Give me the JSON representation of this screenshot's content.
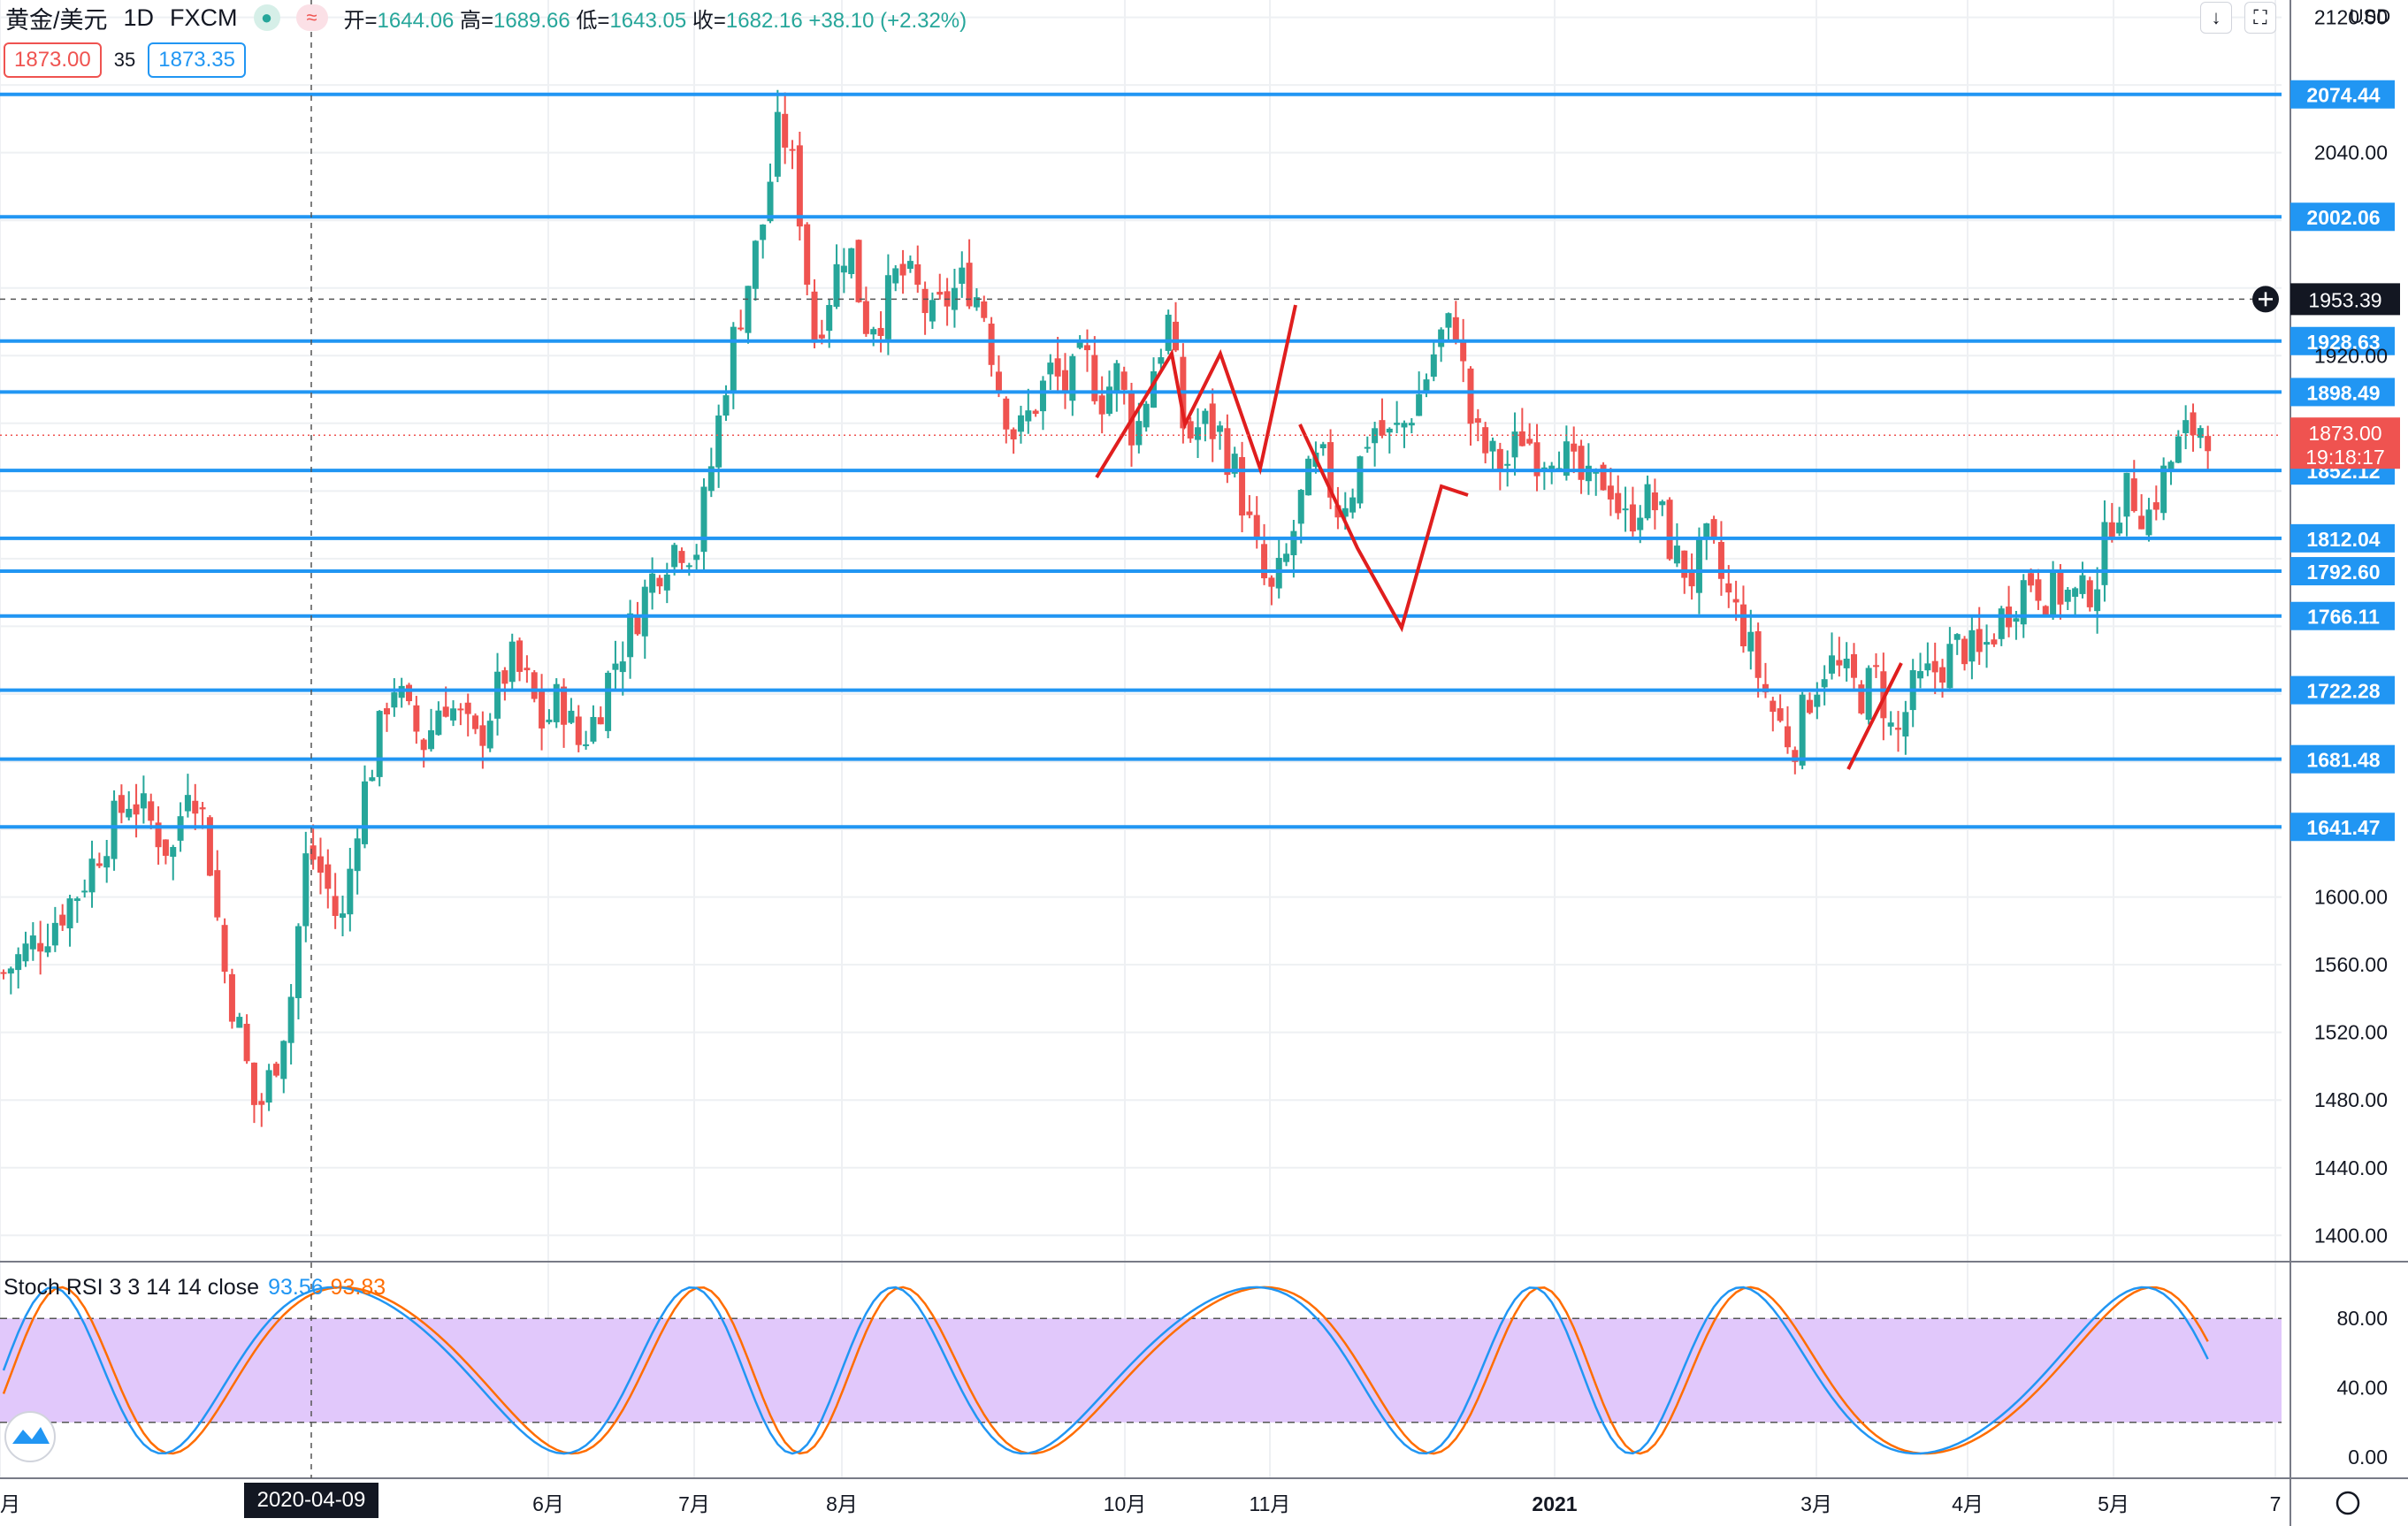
{
  "header": {
    "symbol": "黄金/美元",
    "interval": "1D",
    "exchange": "FXCM",
    "open_label": "开=",
    "open": "1644.06",
    "high_label": "高=",
    "high": "1689.66",
    "low_label": "低=",
    "low": "1643.05",
    "close_label": "收=",
    "close": "1682.16",
    "change": "+38.10 (+2.32%)",
    "sell_price": "1873.00",
    "spread": "35",
    "buy_price": "1873.35",
    "currency": "USD"
  },
  "colors": {
    "up": "#26a69a",
    "down": "#ef5350",
    "level_line": "#2196f3",
    "pattern": "#e01e1e",
    "stoch_k": "#2196f3",
    "stoch_d": "#ff6d00",
    "stoch_band": "#e1c8fb"
  },
  "indicator": {
    "name": "Stoch RSI 3 3 14 14 close",
    "k_value": "93.56",
    "d_value": "93.83",
    "levels": [
      80,
      20
    ],
    "ticks": [
      "80.00",
      "40.00",
      "0.00"
    ]
  },
  "crosshair": {
    "date_label": "2020-04-09",
    "price_label": "1953.39"
  },
  "last_price": {
    "price": "1873.00",
    "countdown": "19:18:17"
  },
  "chart_data": {
    "type": "candlestick",
    "y_axis_ticks": [
      "2120.00",
      "2040.00",
      "1920.00",
      "1600.00",
      "1560.00",
      "1520.00",
      "1480.00",
      "1440.00",
      "1400.00"
    ],
    "y_axis_hidden_ticks": [
      2080,
      2000,
      1960,
      1880,
      1840,
      1800,
      1760,
      1720,
      1680,
      1640
    ],
    "y_range": [
      1385,
      2125
    ],
    "x_axis_labels": [
      "月",
      "6月",
      "7月",
      "8月",
      "10月",
      "11月",
      "2021",
      "3月",
      "4月",
      "5月",
      "7"
    ],
    "horizontal_levels": [
      "2074.44",
      "2002.06",
      "1928.63",
      "1898.49",
      "1852.12",
      "1812.04",
      "1792.60",
      "1766.11",
      "1722.28",
      "1681.48",
      "1641.47"
    ],
    "price_path": [
      [
        0,
        1555
      ],
      [
        5,
        1580
      ],
      [
        9,
        1605
      ],
      [
        12,
        1635
      ],
      [
        15,
        1660
      ],
      [
        18,
        1640
      ],
      [
        20,
        1625
      ],
      [
        22,
        1675
      ],
      [
        24,
        1640
      ],
      [
        26,
        1560
      ],
      [
        28,
        1520
      ],
      [
        30,
        1470
      ],
      [
        32,
        1500
      ],
      [
        34,
        1540
      ],
      [
        36,
        1630
      ],
      [
        38,
        1610
      ],
      [
        40,
        1580
      ],
      [
        42,
        1650
      ],
      [
        44,
        1685
      ],
      [
        46,
        1730
      ],
      [
        48,
        1705
      ],
      [
        50,
        1690
      ],
      [
        52,
        1720
      ],
      [
        54,
        1705
      ],
      [
        56,
        1690
      ],
      [
        58,
        1715
      ],
      [
        60,
        1740
      ],
      [
        62,
        1725
      ],
      [
        64,
        1700
      ],
      [
        66,
        1720
      ],
      [
        68,
        1690
      ],
      [
        70,
        1705
      ],
      [
        72,
        1735
      ],
      [
        74,
        1755
      ],
      [
        76,
        1780
      ],
      [
        78,
        1800
      ],
      [
        80,
        1810
      ],
      [
        82,
        1805
      ],
      [
        84,
        1860
      ],
      [
        86,
        1920
      ],
      [
        88,
        1960
      ],
      [
        90,
        2000
      ],
      [
        92,
        2060
      ],
      [
        94,
        2020
      ],
      [
        96,
        1930
      ],
      [
        98,
        1960
      ],
      [
        100,
        1990
      ],
      [
        102,
        1940
      ],
      [
        104,
        1945
      ],
      [
        106,
        1970
      ],
      [
        108,
        1960
      ],
      [
        110,
        1940
      ],
      [
        112,
        1955
      ],
      [
        114,
        1965
      ],
      [
        116,
        1950
      ],
      [
        118,
        1900
      ],
      [
        120,
        1870
      ],
      [
        122,
        1890
      ],
      [
        124,
        1910
      ],
      [
        126,
        1900
      ],
      [
        128,
        1920
      ],
      [
        130,
        1895
      ],
      [
        132,
        1910
      ],
      [
        134,
        1870
      ],
      [
        136,
        1910
      ],
      [
        138,
        1940
      ],
      [
        140,
        1870
      ],
      [
        142,
        1880
      ],
      [
        144,
        1875
      ],
      [
        146,
        1850
      ],
      [
        148,
        1810
      ],
      [
        150,
        1775
      ],
      [
        152,
        1800
      ],
      [
        154,
        1840
      ],
      [
        156,
        1860
      ],
      [
        158,
        1830
      ],
      [
        160,
        1845
      ],
      [
        162,
        1880
      ],
      [
        164,
        1870
      ],
      [
        166,
        1880
      ],
      [
        168,
        1900
      ],
      [
        170,
        1930
      ],
      [
        172,
        1940
      ],
      [
        174,
        1875
      ],
      [
        176,
        1860
      ],
      [
        178,
        1855
      ],
      [
        180,
        1875
      ],
      [
        182,
        1860
      ],
      [
        184,
        1870
      ],
      [
        186,
        1850
      ],
      [
        188,
        1840
      ],
      [
        190,
        1850
      ],
      [
        192,
        1820
      ],
      [
        194,
        1835
      ],
      [
        196,
        1830
      ],
      [
        198,
        1800
      ],
      [
        200,
        1790
      ],
      [
        202,
        1810
      ],
      [
        204,
        1780
      ],
      [
        206,
        1760
      ],
      [
        208,
        1730
      ],
      [
        210,
        1705
      ],
      [
        212,
        1690
      ],
      [
        214,
        1720
      ],
      [
        216,
        1740
      ],
      [
        218,
        1730
      ],
      [
        220,
        1720
      ],
      [
        222,
        1730
      ],
      [
        224,
        1690
      ],
      [
        226,
        1720
      ],
      [
        228,
        1730
      ],
      [
        230,
        1740
      ],
      [
        232,
        1750
      ],
      [
        234,
        1740
      ],
      [
        236,
        1760
      ],
      [
        238,
        1775
      ],
      [
        240,
        1790
      ],
      [
        242,
        1780
      ],
      [
        244,
        1780
      ],
      [
        246,
        1775
      ],
      [
        248,
        1790
      ],
      [
        250,
        1830
      ],
      [
        252,
        1840
      ],
      [
        254,
        1825
      ],
      [
        256,
        1850
      ],
      [
        258,
        1870
      ],
      [
        260,
        1880
      ],
      [
        262,
        1875
      ]
    ]
  }
}
